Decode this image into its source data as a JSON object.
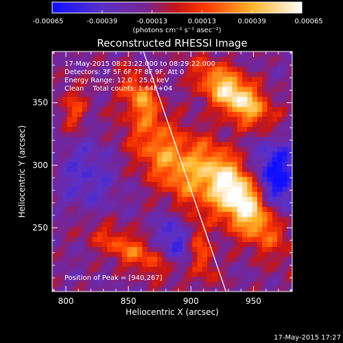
{
  "chart_data": {
    "type": "heatmap",
    "title": "Reconstructed RHESSI Image",
    "colorbar": {
      "ticks": [
        "-0.00065",
        "-0.00039",
        "-0.00013",
        "0.00013",
        "0.00039",
        "0.00065"
      ],
      "units": "(photons cm⁻² s⁻¹ asec⁻²)",
      "range": [
        -0.00065,
        0.00065
      ],
      "colors": [
        "#1010ff",
        "#6a2aa8",
        "#8a1e6a",
        "#c81414",
        "#ff7a00",
        "#ffd23c",
        "#ffffff"
      ]
    },
    "info": [
      "17-May-2015 08:23:22.000 to 08:29:22.000",
      "Detectors: 3F 5F 6F 7F 8F 9F, Att 0",
      "Energy Range: 12.0 - 25.0 keV",
      "Clean    Total counts: 1.64E+04"
    ],
    "peak_text": "Position of Peak = [940,267]",
    "xlabel": "Heliocentric X (arcsec)",
    "ylabel": "Heliocentric Y (arcsec)",
    "xlim": [
      789,
      981
    ],
    "ylim": [
      199,
      391
    ],
    "xticks": [
      800,
      850,
      900,
      950
    ],
    "yticks": [
      250,
      300,
      350
    ],
    "limb_line": {
      "x1": 862,
      "y1": 391,
      "x2": 928,
      "y2": 199
    },
    "background_value": -0.00018,
    "sources": [
      {
        "x": 939,
        "y": 275,
        "sx": 13,
        "sy": 32,
        "angle": -38,
        "amp": 0.00088
      },
      {
        "x": 935,
        "y": 356,
        "sx": 11,
        "sy": 24,
        "angle": -52,
        "amp": 0.00078
      },
      {
        "x": 884,
        "y": 302,
        "sx": 15,
        "sy": 34,
        "angle": -42,
        "amp": 0.0005
      },
      {
        "x": 860,
        "y": 355,
        "sx": 8,
        "sy": 16,
        "angle": -30,
        "amp": 0.00045
      },
      {
        "x": 806,
        "y": 345,
        "sx": 7,
        "sy": 14,
        "angle": 0,
        "amp": 0.00032
      },
      {
        "x": 852,
        "y": 232,
        "sx": 9,
        "sy": 28,
        "angle": -62,
        "amp": 0.0004
      },
      {
        "x": 907,
        "y": 232,
        "sx": 7,
        "sy": 20,
        "angle": -20,
        "amp": 0.00034
      },
      {
        "x": 968,
        "y": 290,
        "sx": 12,
        "sy": 22,
        "angle": 0,
        "amp": -0.00052
      },
      {
        "x": 888,
        "y": 242,
        "sx": 10,
        "sy": 14,
        "angle": 0,
        "amp": -0.00036
      },
      {
        "x": 816,
        "y": 292,
        "sx": 16,
        "sy": 22,
        "angle": 0,
        "amp": -0.00022
      }
    ]
  },
  "timestamp": "17-May-2015 17:27"
}
